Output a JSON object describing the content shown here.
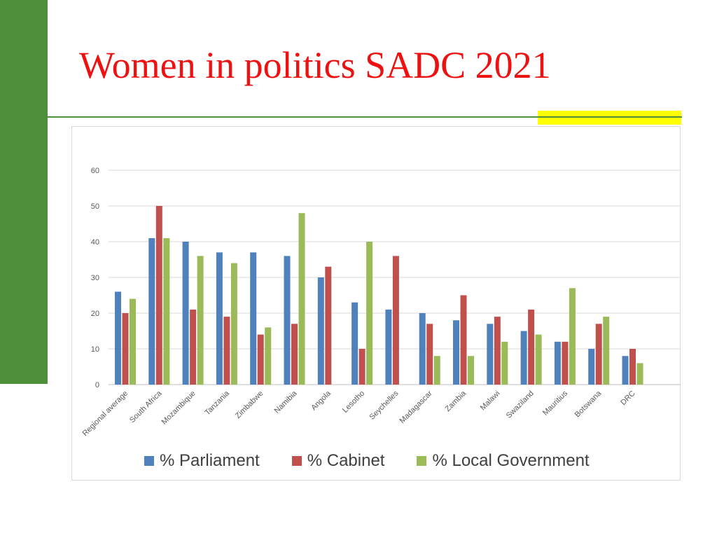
{
  "slide": {
    "title": "Women in politics SADC 2021"
  },
  "colors": {
    "side_bar": "#4e8f3a",
    "title": "#ee1111",
    "accent": "#ffff00"
  },
  "chart_data": {
    "type": "bar",
    "title": "",
    "xlabel": "",
    "ylabel": "",
    "ylim": [
      0,
      60
    ],
    "yticks": [
      0,
      10,
      20,
      30,
      40,
      50,
      60
    ],
    "grid": true,
    "legend_position": "bottom",
    "categories": [
      "Regional average",
      "South Africa",
      "Mozambique",
      "Tanzania",
      "Zimbabwe",
      "Namibia",
      "Angola",
      "Lesotho",
      "Seychelles",
      "Madagascar",
      "Zambia",
      "Malawi",
      "Swaziland",
      "Mauritius",
      "Botswana",
      "DRC"
    ],
    "series": [
      {
        "name": "% Parliament",
        "color": "#4f81bd",
        "values": [
          26,
          41,
          40,
          37,
          37,
          36,
          30,
          23,
          21,
          20,
          18,
          17,
          15,
          12,
          10,
          8
        ]
      },
      {
        "name": "% Cabinet",
        "color": "#c0504d",
        "values": [
          20,
          50,
          21,
          19,
          14,
          17,
          33,
          10,
          36,
          17,
          25,
          19,
          21,
          12,
          17,
          10
        ]
      },
      {
        "name": "% Local Government",
        "color": "#9bbb59",
        "values": [
          24,
          41,
          36,
          34,
          16,
          48,
          null,
          40,
          null,
          8,
          8,
          12,
          14,
          27,
          19,
          6
        ]
      }
    ]
  }
}
